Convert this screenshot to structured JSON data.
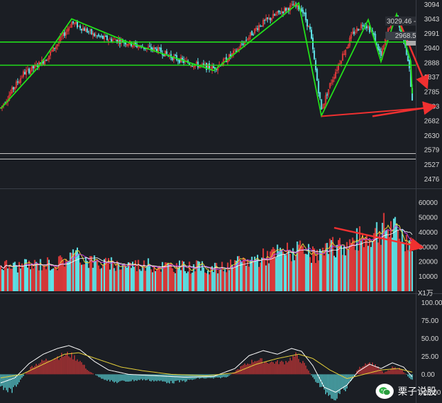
{
  "watermark": {
    "text": "栗子说股",
    "icon": "wechat-icon"
  },
  "colors": {
    "background": "#1b1e24",
    "up": "#e03a3a",
    "down": "#5fe6ea",
    "trendline": "#22e01a",
    "arrow": "#f03030",
    "macd_dif": "#ffffff",
    "macd_dea": "#e8d23a",
    "vol_ma5": "#e8d23a",
    "vol_ma10": "#c040e0"
  },
  "chart_data": [
    {
      "type": "candlestick",
      "panel": "price",
      "title": "",
      "y_ticks": [
        3094,
        3043,
        2991,
        2940,
        2888,
        2837,
        2785,
        2733,
        2682,
        2630,
        2579,
        2527,
        2476
      ],
      "ylim": [
        2450,
        3110
      ],
      "annotations": [
        "3029.46 -",
        "2968.5"
      ],
      "horizontal_lines": [
        2961,
        2879
      ],
      "zigzag": [
        [
          0,
          2725
        ],
        [
          27,
          2875
        ],
        [
          50,
          3043
        ],
        [
          90,
          2960
        ],
        [
          150,
          2860
        ],
        [
          210,
          3100
        ],
        [
          226,
          2700
        ],
        [
          259,
          3040
        ],
        [
          268,
          2892
        ],
        [
          279,
          3060
        ],
        [
          289,
          2893
        ],
        [
          290,
          2779
        ]
      ],
      "lower_line": [
        [
          226,
          2698
        ],
        [
          305,
          2730
        ]
      ],
      "arrows": [
        [
          [
            280,
            3045
          ],
          [
            300,
            2805
          ]
        ],
        [
          [
            262,
            2698
          ],
          [
            305,
            2733
          ]
        ]
      ],
      "trend_points": [
        [
          0,
          2728
        ],
        [
          8,
          2790
        ],
        [
          16,
          2850
        ],
        [
          24,
          2872
        ],
        [
          32,
          2902
        ],
        [
          40,
          2955
        ],
        [
          50,
          3030
        ],
        [
          58,
          3010
        ],
        [
          66,
          2985
        ],
        [
          74,
          2972
        ],
        [
          82,
          2968
        ],
        [
          90,
          2958
        ],
        [
          100,
          2942
        ],
        [
          110,
          2935
        ],
        [
          120,
          2910
        ],
        [
          130,
          2890
        ],
        [
          140,
          2878
        ],
        [
          150,
          2868
        ],
        [
          158,
          2895
        ],
        [
          166,
          2930
        ],
        [
          174,
          2975
        ],
        [
          182,
          3020
        ],
        [
          190,
          3045
        ],
        [
          198,
          3070
        ],
        [
          206,
          3090
        ],
        [
          212,
          3080
        ],
        [
          218,
          3000
        ],
        [
          222,
          2860
        ],
        [
          226,
          2720
        ],
        [
          232,
          2810
        ],
        [
          240,
          2905
        ],
        [
          248,
          2990
        ],
        [
          256,
          3030
        ],
        [
          262,
          2995
        ],
        [
          268,
          2910
        ],
        [
          274,
          3020
        ],
        [
          279,
          3055
        ],
        [
          284,
          2972
        ],
        [
          288,
          2860
        ],
        [
          290,
          2760
        ]
      ]
    },
    {
      "type": "bar",
      "panel": "volume",
      "unit": "X1万",
      "y_ticks": [
        60000,
        50000,
        40000,
        30000,
        20000,
        10000
      ],
      "ylim": [
        0,
        65000
      ],
      "volume_points": [
        [
          0,
          18000
        ],
        [
          10,
          17000
        ],
        [
          20,
          17500
        ],
        [
          30,
          19000
        ],
        [
          40,
          19000
        ],
        [
          50,
          25000
        ],
        [
          60,
          22000
        ],
        [
          70,
          19000
        ],
        [
          80,
          18000
        ],
        [
          90,
          18500
        ],
        [
          100,
          18000
        ],
        [
          110,
          17500
        ],
        [
          120,
          17000
        ],
        [
          130,
          16500
        ],
        [
          140,
          16500
        ],
        [
          150,
          15500
        ],
        [
          160,
          16500
        ],
        [
          170,
          20000
        ],
        [
          180,
          22000
        ],
        [
          190,
          25000
        ],
        [
          200,
          27000
        ],
        [
          210,
          27500
        ],
        [
          215,
          26000
        ],
        [
          220,
          24000
        ],
        [
          228,
          26000
        ],
        [
          235,
          30000
        ],
        [
          245,
          32000
        ],
        [
          255,
          36000
        ],
        [
          265,
          41000
        ],
        [
          272,
          43000
        ],
        [
          280,
          40000
        ],
        [
          287,
          36000
        ],
        [
          292,
          33000
        ]
      ]
    },
    {
      "type": "macd",
      "panel": "macd",
      "y_ticks": [
        100.0,
        75.0,
        50.0,
        25.0,
        0.0,
        -25.0
      ],
      "ylim": [
        -40,
        110
      ],
      "macd_hist_points": [
        [
          0,
          -20
        ],
        [
          8,
          -25
        ],
        [
          15,
          -5
        ],
        [
          22,
          12
        ],
        [
          30,
          20
        ],
        [
          38,
          25
        ],
        [
          48,
          30
        ],
        [
          55,
          22
        ],
        [
          62,
          5
        ],
        [
          70,
          -5
        ],
        [
          80,
          -12
        ],
        [
          90,
          -10
        ],
        [
          100,
          -8
        ],
        [
          110,
          -10
        ],
        [
          120,
          -12
        ],
        [
          130,
          -10
        ],
        [
          140,
          -6
        ],
        [
          150,
          -6
        ],
        [
          160,
          -4
        ],
        [
          170,
          12
        ],
        [
          180,
          22
        ],
        [
          190,
          18
        ],
        [
          200,
          18
        ],
        [
          208,
          28
        ],
        [
          214,
          15
        ],
        [
          220,
          -5
        ],
        [
          228,
          -25
        ],
        [
          236,
          -35
        ],
        [
          244,
          -20
        ],
        [
          252,
          8
        ],
        [
          258,
          18
        ],
        [
          264,
          14
        ],
        [
          270,
          2
        ],
        [
          276,
          10
        ],
        [
          282,
          8
        ],
        [
          288,
          -5
        ],
        [
          292,
          -12
        ]
      ],
      "dif_points": [
        [
          0,
          -12
        ],
        [
          10,
          -5
        ],
        [
          20,
          15
        ],
        [
          30,
          28
        ],
        [
          40,
          36
        ],
        [
          48,
          40
        ],
        [
          56,
          34
        ],
        [
          66,
          18
        ],
        [
          76,
          6
        ],
        [
          90,
          0
        ],
        [
          110,
          -2
        ],
        [
          130,
          -4
        ],
        [
          150,
          -3
        ],
        [
          165,
          8
        ],
        [
          175,
          26
        ],
        [
          185,
          33
        ],
        [
          195,
          28
        ],
        [
          205,
          36
        ],
        [
          212,
          32
        ],
        [
          220,
          12
        ],
        [
          228,
          -18
        ],
        [
          236,
          -25
        ],
        [
          244,
          -15
        ],
        [
          252,
          4
        ],
        [
          260,
          14
        ],
        [
          268,
          8
        ],
        [
          276,
          16
        ],
        [
          284,
          10
        ],
        [
          292,
          -8
        ]
      ],
      "dea_points": [
        [
          0,
          -5
        ],
        [
          15,
          0
        ],
        [
          30,
          14
        ],
        [
          45,
          28
        ],
        [
          55,
          30
        ],
        [
          70,
          20
        ],
        [
          85,
          10
        ],
        [
          100,
          5
        ],
        [
          120,
          0
        ],
        [
          145,
          -2
        ],
        [
          165,
          2
        ],
        [
          180,
          14
        ],
        [
          195,
          22
        ],
        [
          210,
          28
        ],
        [
          220,
          22
        ],
        [
          232,
          6
        ],
        [
          244,
          -6
        ],
        [
          256,
          0
        ],
        [
          268,
          6
        ],
        [
          280,
          8
        ],
        [
          292,
          2
        ]
      ]
    }
  ]
}
